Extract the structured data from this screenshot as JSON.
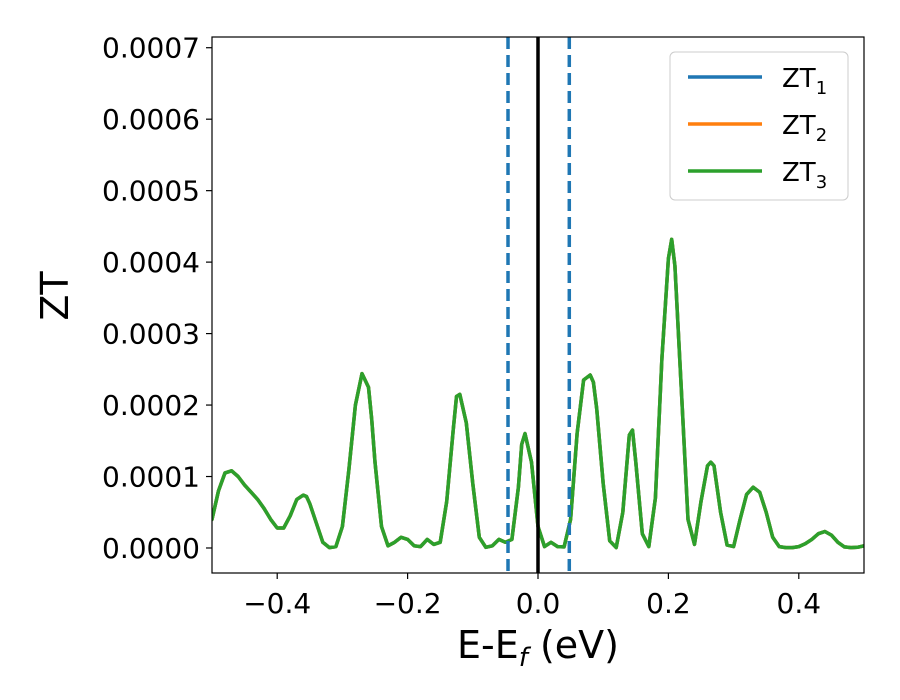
{
  "chart_data": {
    "type": "line",
    "xlabel": "E-E",
    "xlabel_sub": "f",
    "xlabel_unit": " (eV)",
    "ylabel": "ZT",
    "xlim": [
      -0.5,
      0.5
    ],
    "ylim": [
      -3.5e-05,
      0.000715
    ],
    "x_ticks": [
      -0.4,
      -0.2,
      0.0,
      0.2,
      0.4
    ],
    "x_tick_labels": [
      "−0.4",
      "−0.2",
      "0.0",
      "0.2",
      "0.4"
    ],
    "y_ticks": [
      0,
      0.0001,
      0.0002,
      0.0003,
      0.0004,
      0.0005,
      0.0006,
      0.0007
    ],
    "y_tick_labels": [
      "0.0000",
      "0.0001",
      "0.0002",
      "0.0003",
      "0.0004",
      "0.0005",
      "0.0006",
      "0.0007"
    ],
    "legend_position": "top-right",
    "vertical_lines": [
      {
        "x": -0.046,
        "style": "dashed",
        "color": "#1f77b4"
      },
      {
        "x": 0.0,
        "style": "solid",
        "color": "#000000"
      },
      {
        "x": 0.048,
        "style": "dashed",
        "color": "#1f77b4"
      }
    ],
    "series": [
      {
        "name": "ZT",
        "sub": "1",
        "color": "#1f77b4"
      },
      {
        "name": "ZT",
        "sub": "2",
        "color": "#ff7f0e"
      },
      {
        "name": "ZT",
        "sub": "3",
        "color": "#2ca02c"
      }
    ],
    "x": [
      -0.5,
      -0.49,
      -0.48,
      -0.47,
      -0.46,
      -0.45,
      -0.44,
      -0.43,
      -0.42,
      -0.41,
      -0.4,
      -0.39,
      -0.38,
      -0.37,
      -0.36,
      -0.355,
      -0.35,
      -0.34,
      -0.33,
      -0.32,
      -0.31,
      -0.3,
      -0.29,
      -0.28,
      -0.27,
      -0.26,
      -0.255,
      -0.25,
      -0.24,
      -0.23,
      -0.22,
      -0.21,
      -0.2,
      -0.19,
      -0.18,
      -0.17,
      -0.16,
      -0.15,
      -0.14,
      -0.13,
      -0.125,
      -0.12,
      -0.11,
      -0.1,
      -0.09,
      -0.08,
      -0.07,
      -0.06,
      -0.05,
      -0.04,
      -0.03,
      -0.025,
      -0.02,
      -0.01,
      0.0,
      0.01,
      0.02,
      0.03,
      0.04,
      0.05,
      0.06,
      0.07,
      0.08,
      0.085,
      0.09,
      0.1,
      0.11,
      0.12,
      0.13,
      0.14,
      0.145,
      0.15,
      0.16,
      0.17,
      0.18,
      0.19,
      0.2,
      0.205,
      0.21,
      0.22,
      0.23,
      0.24,
      0.25,
      0.26,
      0.265,
      0.27,
      0.28,
      0.29,
      0.3,
      0.31,
      0.32,
      0.33,
      0.34,
      0.35,
      0.36,
      0.37,
      0.38,
      0.39,
      0.4,
      0.41,
      0.42,
      0.43,
      0.44,
      0.45,
      0.46,
      0.47,
      0.48,
      0.49,
      0.5
    ],
    "y": [
      4e-05,
      8e-05,
      0.000105,
      0.000108,
      0.0001,
      8.8e-05,
      7.8e-05,
      6.8e-05,
      5.5e-05,
      4e-05,
      2.8e-05,
      2.8e-05,
      4.5e-05,
      6.8e-05,
      7.4e-05,
      7.2e-05,
      6.2e-05,
      3.5e-05,
      8e-06,
      5e-07,
      2e-06,
      3e-05,
      0.00011,
      0.0002,
      0.000244,
      0.000225,
      0.00018,
      0.00012,
      3e-05,
      3e-06,
      8e-06,
      1.5e-05,
      1.2e-05,
      3e-06,
      2e-06,
      1.2e-05,
      5e-06,
      8e-06,
      6.5e-05,
      0.000165,
      0.000212,
      0.000215,
      0.000175,
      9e-05,
      1.5e-05,
      1e-06,
      3e-06,
      1.2e-05,
      8e-06,
      1.2e-05,
      8.5e-05,
      0.000145,
      0.00016,
      0.00012,
      3e-05,
      2e-06,
      8e-06,
      2e-06,
      1.5e-06,
      4e-05,
      0.00016,
      0.000235,
      0.000242,
      0.000232,
      0.000195,
      9e-05,
      1e-05,
      5e-07,
      5e-05,
      0.000158,
      0.000165,
      0.00012,
      2e-05,
      2e-06,
      7e-05,
      0.000265,
      0.000405,
      0.000432,
      0.000395,
      0.00022,
      4e-05,
      5e-06,
      6.5e-05,
      0.000115,
      0.00012,
      0.000115,
      5e-05,
      4e-06,
      2e-06,
      4e-05,
      7.5e-05,
      8.5e-05,
      7.8e-05,
      5e-05,
      1.5e-05,
      2e-06,
      5e-07,
      5e-07,
      2e-06,
      6e-06,
      1.2e-05,
      2e-05,
      2.3e-05,
      1.8e-05,
      8e-06,
      1.5e-06,
      5e-07,
      1e-06,
      3e-06
    ]
  }
}
